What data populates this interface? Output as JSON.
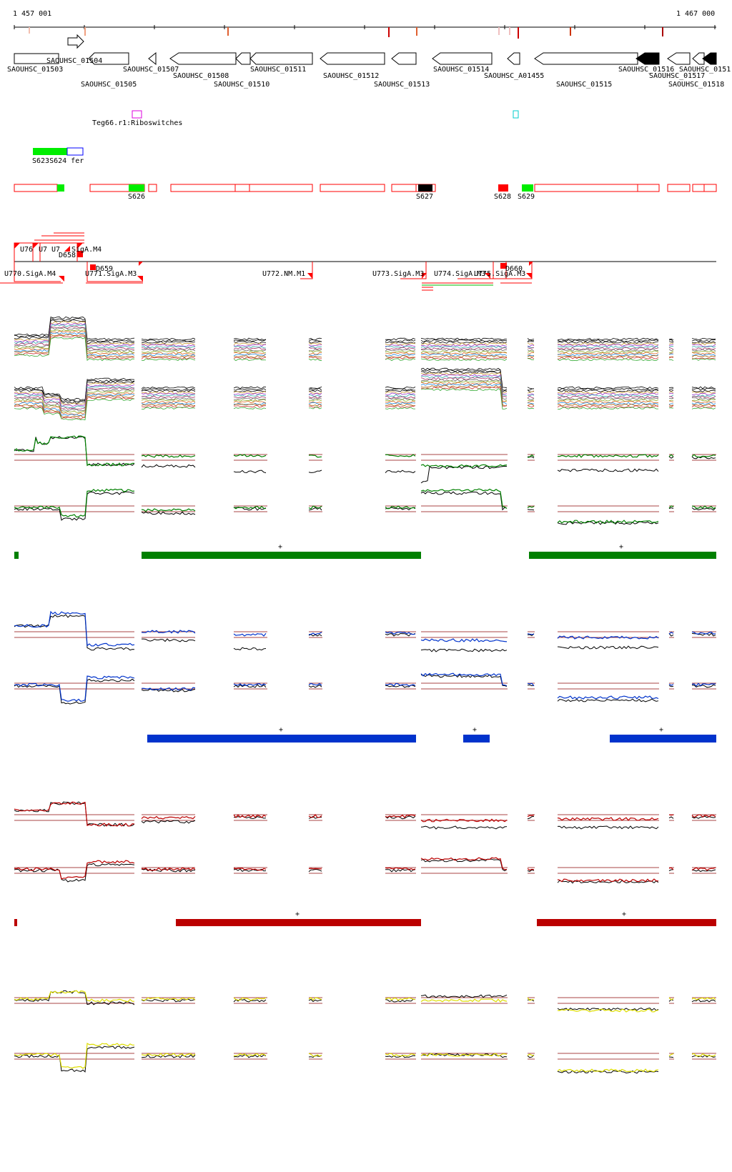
{
  "ruler": {
    "start_label": "1 457 001",
    "end_label": "1 467 000"
  },
  "genes": [
    {
      "id": "SAOUHSC_01503"
    },
    {
      "id": "SAOUHSC_01504"
    },
    {
      "id": "SAOUHSC_01505"
    },
    {
      "id": "SAOUHSC_01507"
    },
    {
      "id": "SAOUHSC_01508"
    },
    {
      "id": "SAOUHSC_01510"
    },
    {
      "id": "SAOUHSC_01511"
    },
    {
      "id": "SAOUHSC_01512"
    },
    {
      "id": "SAOUHSC_01513"
    },
    {
      "id": "SAOUHSC_01514"
    },
    {
      "id": "SAOUHSC_A01455"
    },
    {
      "id": "SAOUHSC_01515"
    },
    {
      "id": "SAOUHSC_01516"
    },
    {
      "id": "SAOUHSC_01517"
    },
    {
      "id": "SAOUHSC_01518"
    },
    {
      "id": "SAOUHSC_0151"
    }
  ],
  "riboswitch": {
    "label": "Teg66.r1:Riboswitches"
  },
  "s_features": {
    "top_label": "S623S624 fer",
    "row_labels": [
      "S626",
      "S627",
      "S628",
      "S629"
    ]
  },
  "u_features": {
    "top_labels": [
      "U76",
      "U7",
      "U7",
      "SigA.M4",
      "D658"
    ],
    "bottom_labels": [
      "U770.SigA.M4",
      "D659",
      "U771.SigA.M3",
      "U772.NM.M1",
      "U773.SigA.M3",
      "U774.SigA.M3",
      "U775.SigA.M3",
      "D660"
    ]
  },
  "segment_marks": [
    "+",
    "+",
    "+",
    "+",
    "+",
    "+",
    "+"
  ],
  "colors": {
    "gene_outline": "#000000",
    "gene_fill_dark": "#000000",
    "feature_outline": "#ff0000",
    "feature_green": "#00ee00",
    "feature_red": "#ff0000",
    "feature_black": "#000000",
    "riboswitch_magenta": "#dd00dd",
    "riboswitch_cyan": "#00cccc",
    "track_green": "#008000",
    "track_blue": "#0033cc",
    "track_red": "#bb0000",
    "track_yellow": "#dddd00",
    "threshold_line": "#aa4444"
  }
}
